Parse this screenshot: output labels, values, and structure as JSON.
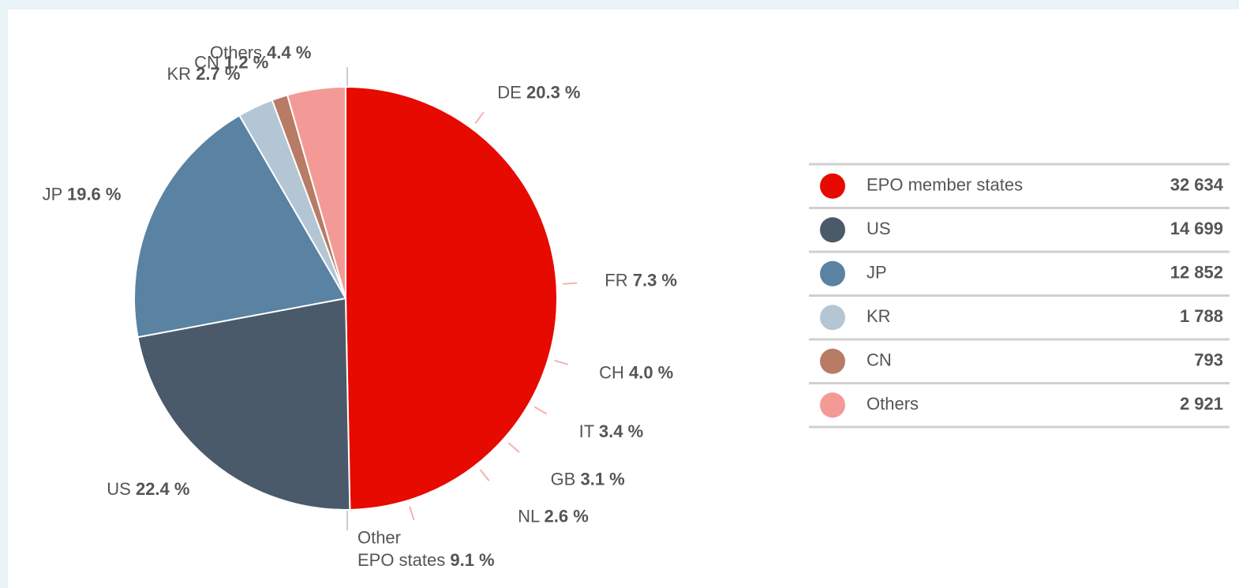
{
  "chart_data": {
    "type": "pie",
    "slices": [
      {
        "name": "EPO member states",
        "count": 32634,
        "count_label": "32 634",
        "color": "#e60a00",
        "parts": [
          {
            "name": "DE",
            "percent": 20.3,
            "percent_label": "20.3 %"
          },
          {
            "name": "FR",
            "percent": 7.3,
            "percent_label": "7.3 %"
          },
          {
            "name": "CH",
            "percent": 4.0,
            "percent_label": "4.0 %"
          },
          {
            "name": "IT",
            "percent": 3.4,
            "percent_label": "3.4 %"
          },
          {
            "name": "GB",
            "percent": 3.1,
            "percent_label": "3.1 %"
          },
          {
            "name": "NL",
            "percent": 2.6,
            "percent_label": "2.6 %"
          },
          {
            "name": "Other EPO states",
            "percent": 9.1,
            "percent_label": "9.1 %"
          }
        ]
      },
      {
        "name": "US",
        "count": 14699,
        "count_label": "14 699",
        "color": "#4a5a6a",
        "percent": 22.4,
        "percent_label": "22.4 %"
      },
      {
        "name": "JP",
        "count": 12852,
        "count_label": "12 852",
        "color": "#5a82a2",
        "percent": 19.6,
        "percent_label": "19.6 %"
      },
      {
        "name": "KR",
        "count": 1788,
        "count_label": "1 788",
        "color": "#b4c6d4",
        "percent": 2.7,
        "percent_label": "2.7 %"
      },
      {
        "name": "CN",
        "count": 793,
        "count_label": "793",
        "color": "#b87b66",
        "percent": 1.2,
        "percent_label": "1.2 %"
      },
      {
        "name": "Others",
        "count": 2921,
        "count_label": "2 921",
        "color": "#f49a96",
        "percent": 4.4,
        "percent_label": "4.4 %"
      }
    ]
  }
}
